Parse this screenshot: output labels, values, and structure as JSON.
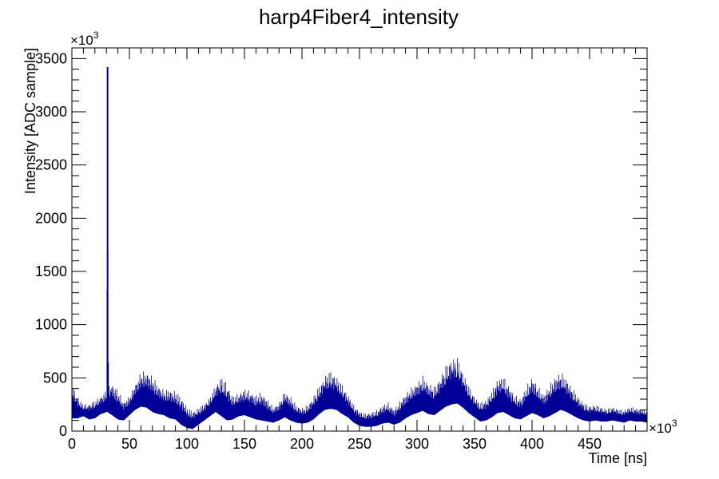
{
  "chart_data": {
    "type": "line",
    "title": "harp4Fiber4_intensity",
    "xlabel": "Time [ns]",
    "ylabel": "Intensity [ADC sample]",
    "x_multiplier": "×10",
    "x_multiplier_exp": "3",
    "y_multiplier": "×10",
    "y_multiplier_exp": "3",
    "xlim": [
      0,
      500
    ],
    "ylim": [
      0,
      3600
    ],
    "x_ticks": [
      0,
      50,
      100,
      150,
      200,
      250,
      300,
      350,
      400,
      450
    ],
    "x_tick_labels": [
      "0",
      "50",
      "100",
      "150",
      "200",
      "250",
      "300",
      "350",
      "400",
      "450"
    ],
    "y_ticks": [
      0,
      500,
      1000,
      1500,
      2000,
      2500,
      3000,
      3500
    ],
    "y_tick_labels": [
      "0",
      "500",
      "1000",
      "1500",
      "2000",
      "2500",
      "3000",
      "3500"
    ],
    "grid": false,
    "series_color": "#000099",
    "series": [
      {
        "x": [
          0,
          5,
          10,
          15,
          20,
          25,
          28,
          30,
          31,
          32,
          35,
          40,
          45,
          50,
          55,
          60,
          65,
          70,
          75,
          80,
          85,
          90,
          95,
          100,
          105,
          110,
          115,
          120,
          125,
          130,
          135,
          140,
          145,
          150,
          155,
          160,
          165,
          170,
          175,
          180,
          185,
          190,
          195,
          200,
          205,
          210,
          215,
          220,
          225,
          230,
          235,
          240,
          245,
          250,
          255,
          260,
          265,
          270,
          275,
          280,
          285,
          290,
          295,
          300,
          305,
          310,
          315,
          320,
          325,
          330,
          335,
          340,
          345,
          350,
          355,
          360,
          365,
          370,
          375,
          380,
          385,
          390,
          395,
          400,
          405,
          410,
          415,
          420,
          425,
          430,
          435,
          440,
          445,
          450,
          455,
          460,
          465,
          470,
          475,
          480,
          485,
          490,
          495,
          500
        ],
        "upper": [
          450,
          320,
          250,
          260,
          290,
          330,
          360,
          390,
          3420,
          420,
          460,
          390,
          280,
          330,
          450,
          560,
          570,
          520,
          440,
          390,
          400,
          380,
          330,
          230,
          190,
          220,
          260,
          320,
          440,
          520,
          450,
          330,
          360,
          400,
          380,
          340,
          370,
          300,
          230,
          270,
          380,
          330,
          250,
          220,
          250,
          330,
          430,
          530,
          570,
          520,
          440,
          350,
          250,
          190,
          170,
          180,
          200,
          250,
          270,
          210,
          280,
          360,
          410,
          460,
          520,
          460,
          420,
          510,
          620,
          690,
          700,
          560,
          430,
          330,
          270,
          300,
          380,
          500,
          520,
          430,
          340,
          310,
          420,
          520,
          430,
          350,
          430,
          520,
          560,
          500,
          410,
          330,
          270,
          240,
          250,
          230,
          210,
          230,
          210,
          200,
          230,
          220,
          210,
          200
        ],
        "lower": [
          120,
          120,
          140,
          110,
          120,
          160,
          170,
          180,
          180,
          170,
          150,
          110,
          100,
          150,
          200,
          230,
          220,
          180,
          160,
          150,
          120,
          110,
          60,
          30,
          20,
          60,
          100,
          140,
          180,
          140,
          100,
          110,
          140,
          150,
          130,
          110,
          100,
          90,
          80,
          100,
          130,
          100,
          80,
          70,
          80,
          110,
          160,
          200,
          210,
          200,
          160,
          130,
          80,
          50,
          40,
          40,
          50,
          70,
          80,
          60,
          80,
          120,
          150,
          170,
          190,
          160,
          150,
          190,
          230,
          250,
          260,
          220,
          170,
          130,
          90,
          100,
          130,
          170,
          180,
          150,
          120,
          110,
          140,
          170,
          150,
          120,
          140,
          170,
          200,
          180,
          150,
          120,
          100,
          90,
          100,
          90,
          90,
          100,
          90,
          80,
          100,
          90,
          90,
          80
        ]
      }
    ]
  }
}
